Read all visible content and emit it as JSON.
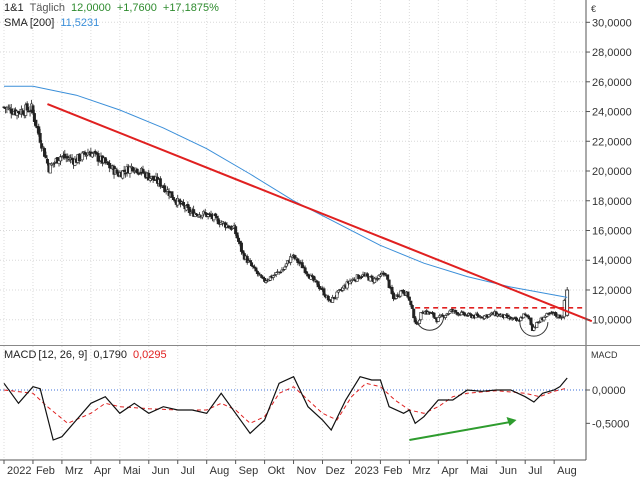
{
  "header": {
    "instrument": "1&1",
    "period": "Täglich",
    "last": "12,0000",
    "change": "+1,7600",
    "change_pct": "+17,1875%",
    "sma_label": "SMA",
    "sma_params": "[200]",
    "sma_value": "11,5231",
    "macd_label": "MACD",
    "macd_params": "[12, 26, 9]",
    "macd_value": "0,1790",
    "macd_signal": "0,0295"
  },
  "colors": {
    "up": "#2e8b2e",
    "sma": "#3b8fd9",
    "trend": "#e02020",
    "signal": "#e02020",
    "macd": "#111111",
    "arrow": "#2e9c2e",
    "zero": "#3b6fd9"
  },
  "chart_data": [
    {
      "type": "candlestick",
      "currency": "€",
      "ylim": [
        8.3,
        31.5
      ],
      "y_ticks": [
        "30,0000",
        "28,0000",
        "26,0000",
        "24,0000",
        "22,0000",
        "20,0000",
        "18,0000",
        "16,0000",
        "14,0000",
        "12,0000",
        "10,0000"
      ],
      "y_tick_values": [
        30,
        28,
        26,
        24,
        22,
        20,
        18,
        16,
        14,
        12,
        10
      ],
      "x_ticks": [
        "2022",
        "Feb",
        "Mrz",
        "Apr",
        "Mai",
        "Jun",
        "Jul",
        "Aug",
        "Sep",
        "Okt",
        "Nov",
        "Dez",
        "2023",
        "Feb",
        "Mrz",
        "Apr",
        "Mai",
        "Jun",
        "Jul",
        "Aug"
      ],
      "x_tick_months": [
        0,
        1,
        2,
        3,
        4,
        5,
        6,
        7,
        8,
        9,
        10,
        11,
        12,
        13,
        14,
        15,
        16,
        17,
        18,
        19
      ],
      "price_path": [
        [
          0,
          24.3
        ],
        [
          0.5,
          24.0
        ],
        [
          1,
          24.2
        ],
        [
          1.25,
          22.5
        ],
        [
          1.6,
          20.2
        ],
        [
          2,
          21.0
        ],
        [
          2.5,
          20.7
        ],
        [
          3,
          21.3
        ],
        [
          3.5,
          20.6
        ],
        [
          4,
          19.8
        ],
        [
          4.5,
          20.3
        ],
        [
          5,
          19.7
        ],
        [
          5.5,
          19.1
        ],
        [
          6,
          18.0
        ],
        [
          6.5,
          17.2
        ],
        [
          7,
          17.1
        ],
        [
          7.5,
          16.6
        ],
        [
          8,
          16.1
        ],
        [
          8.3,
          14.4
        ],
        [
          8.6,
          13.6
        ],
        [
          9,
          12.6
        ],
        [
          9.3,
          12.9
        ],
        [
          9.7,
          13.4
        ],
        [
          10,
          14.3
        ],
        [
          10.4,
          13.5
        ],
        [
          10.7,
          12.7
        ],
        [
          11,
          12.1
        ],
        [
          11.3,
          11.2
        ],
        [
          11.7,
          12.0
        ],
        [
          12,
          12.6
        ],
        [
          12.4,
          13.0
        ],
        [
          12.8,
          12.7
        ],
        [
          13,
          12.8
        ],
        [
          13.2,
          13.2
        ],
        [
          13.5,
          11.4
        ],
        [
          13.8,
          12.0
        ],
        [
          14,
          11.6
        ],
        [
          14.3,
          9.6
        ],
        [
          14.5,
          10.6
        ],
        [
          14.8,
          10.4
        ],
        [
          15,
          10.0
        ],
        [
          15.5,
          10.6
        ],
        [
          16,
          10.3
        ],
        [
          16.5,
          10.2
        ],
        [
          17,
          10.4
        ],
        [
          17.5,
          10.1
        ],
        [
          17.8,
          9.9
        ],
        [
          18,
          10.3
        ],
        [
          18.2,
          10.1
        ],
        [
          18.3,
          9.4
        ],
        [
          18.5,
          9.8
        ],
        [
          18.7,
          10.2
        ],
        [
          19,
          10.4
        ],
        [
          19.25,
          10.2
        ],
        [
          19.35,
          10.3
        ],
        [
          19.45,
          12.0
        ]
      ],
      "sma200": [
        [
          0,
          25.7
        ],
        [
          1,
          25.7
        ],
        [
          1.5,
          25.5
        ],
        [
          2.5,
          25.1
        ],
        [
          4,
          24.1
        ],
        [
          5.5,
          22.9
        ],
        [
          7,
          21.5
        ],
        [
          8.5,
          19.8
        ],
        [
          10,
          18.0
        ],
        [
          11.5,
          16.5
        ],
        [
          13,
          15.0
        ],
        [
          14.5,
          13.8
        ],
        [
          16,
          12.9
        ],
        [
          17.5,
          12.2
        ],
        [
          19.45,
          11.5
        ]
      ],
      "trendline": [
        [
          1.5,
          24.5
        ],
        [
          20.3,
          9.9
        ]
      ],
      "neckline": {
        "y": 10.8,
        "x_range": [
          14.2,
          20.0
        ]
      },
      "bottoms": [
        [
          14.7,
          10.1
        ],
        [
          18.3,
          9.7
        ]
      ]
    },
    {
      "type": "line",
      "name": "MACD",
      "ylim": [
        -1.05,
        0.66
      ],
      "y_ticks": [
        "0,0000",
        "-0,5000"
      ],
      "y_tick_values": [
        0,
        -0.5
      ],
      "macd": [
        [
          0,
          0.1
        ],
        [
          0.5,
          -0.2
        ],
        [
          1,
          0.05
        ],
        [
          1.25,
          0.02
        ],
        [
          1.7,
          -0.75
        ],
        [
          2,
          -0.7
        ],
        [
          2.5,
          -0.45
        ],
        [
          3,
          -0.2
        ],
        [
          3.5,
          -0.1
        ],
        [
          4,
          -0.35
        ],
        [
          4.5,
          -0.2
        ],
        [
          5,
          -0.35
        ],
        [
          5.5,
          -0.25
        ],
        [
          6,
          -0.3
        ],
        [
          6.5,
          -0.3
        ],
        [
          7,
          -0.35
        ],
        [
          7.5,
          -0.05
        ],
        [
          8,
          -0.35
        ],
        [
          8.5,
          -0.65
        ],
        [
          9,
          -0.45
        ],
        [
          9.5,
          0.1
        ],
        [
          10,
          0.2
        ],
        [
          10.5,
          -0.25
        ],
        [
          11,
          -0.45
        ],
        [
          11.3,
          -0.6
        ],
        [
          11.8,
          -0.15
        ],
        [
          12.3,
          0.2
        ],
        [
          12.7,
          0.15
        ],
        [
          13,
          0.15
        ],
        [
          13.3,
          -0.25
        ],
        [
          13.8,
          -0.35
        ],
        [
          14,
          -0.3
        ],
        [
          14.2,
          -0.5
        ],
        [
          14.5,
          -0.4
        ],
        [
          15,
          -0.15
        ],
        [
          15.5,
          -0.15
        ],
        [
          16,
          0.0
        ],
        [
          16.5,
          -0.02
        ],
        [
          17,
          0.0
        ],
        [
          17.5,
          0.0
        ],
        [
          18,
          -0.1
        ],
        [
          18.3,
          -0.18
        ],
        [
          18.6,
          -0.05
        ],
        [
          19,
          0.0
        ],
        [
          19.2,
          0.05
        ],
        [
          19.45,
          0.18
        ]
      ],
      "signal": [
        [
          0,
          0.0
        ],
        [
          1,
          -0.05
        ],
        [
          1.5,
          -0.25
        ],
        [
          2.2,
          -0.5
        ],
        [
          3,
          -0.35
        ],
        [
          3.5,
          -0.2
        ],
        [
          4,
          -0.25
        ],
        [
          5,
          -0.28
        ],
        [
          6,
          -0.3
        ],
        [
          7,
          -0.3
        ],
        [
          7.5,
          -0.2
        ],
        [
          8,
          -0.3
        ],
        [
          8.5,
          -0.5
        ],
        [
          9,
          -0.4
        ],
        [
          9.5,
          -0.05
        ],
        [
          10,
          0.05
        ],
        [
          10.5,
          -0.15
        ],
        [
          11,
          -0.35
        ],
        [
          11.5,
          -0.45
        ],
        [
          12,
          -0.1
        ],
        [
          12.5,
          0.1
        ],
        [
          13,
          0.05
        ],
        [
          13.5,
          -0.15
        ],
        [
          14,
          -0.3
        ],
        [
          14.5,
          -0.35
        ],
        [
          15,
          -0.25
        ],
        [
          15.5,
          -0.1
        ],
        [
          16,
          -0.05
        ],
        [
          17,
          -0.01
        ],
        [
          18,
          -0.05
        ],
        [
          18.5,
          -0.1
        ],
        [
          19,
          -0.02
        ],
        [
          19.45,
          0.03
        ]
      ],
      "arrow": [
        [
          14.0,
          -0.75
        ],
        [
          17.7,
          -0.45
        ]
      ]
    }
  ]
}
